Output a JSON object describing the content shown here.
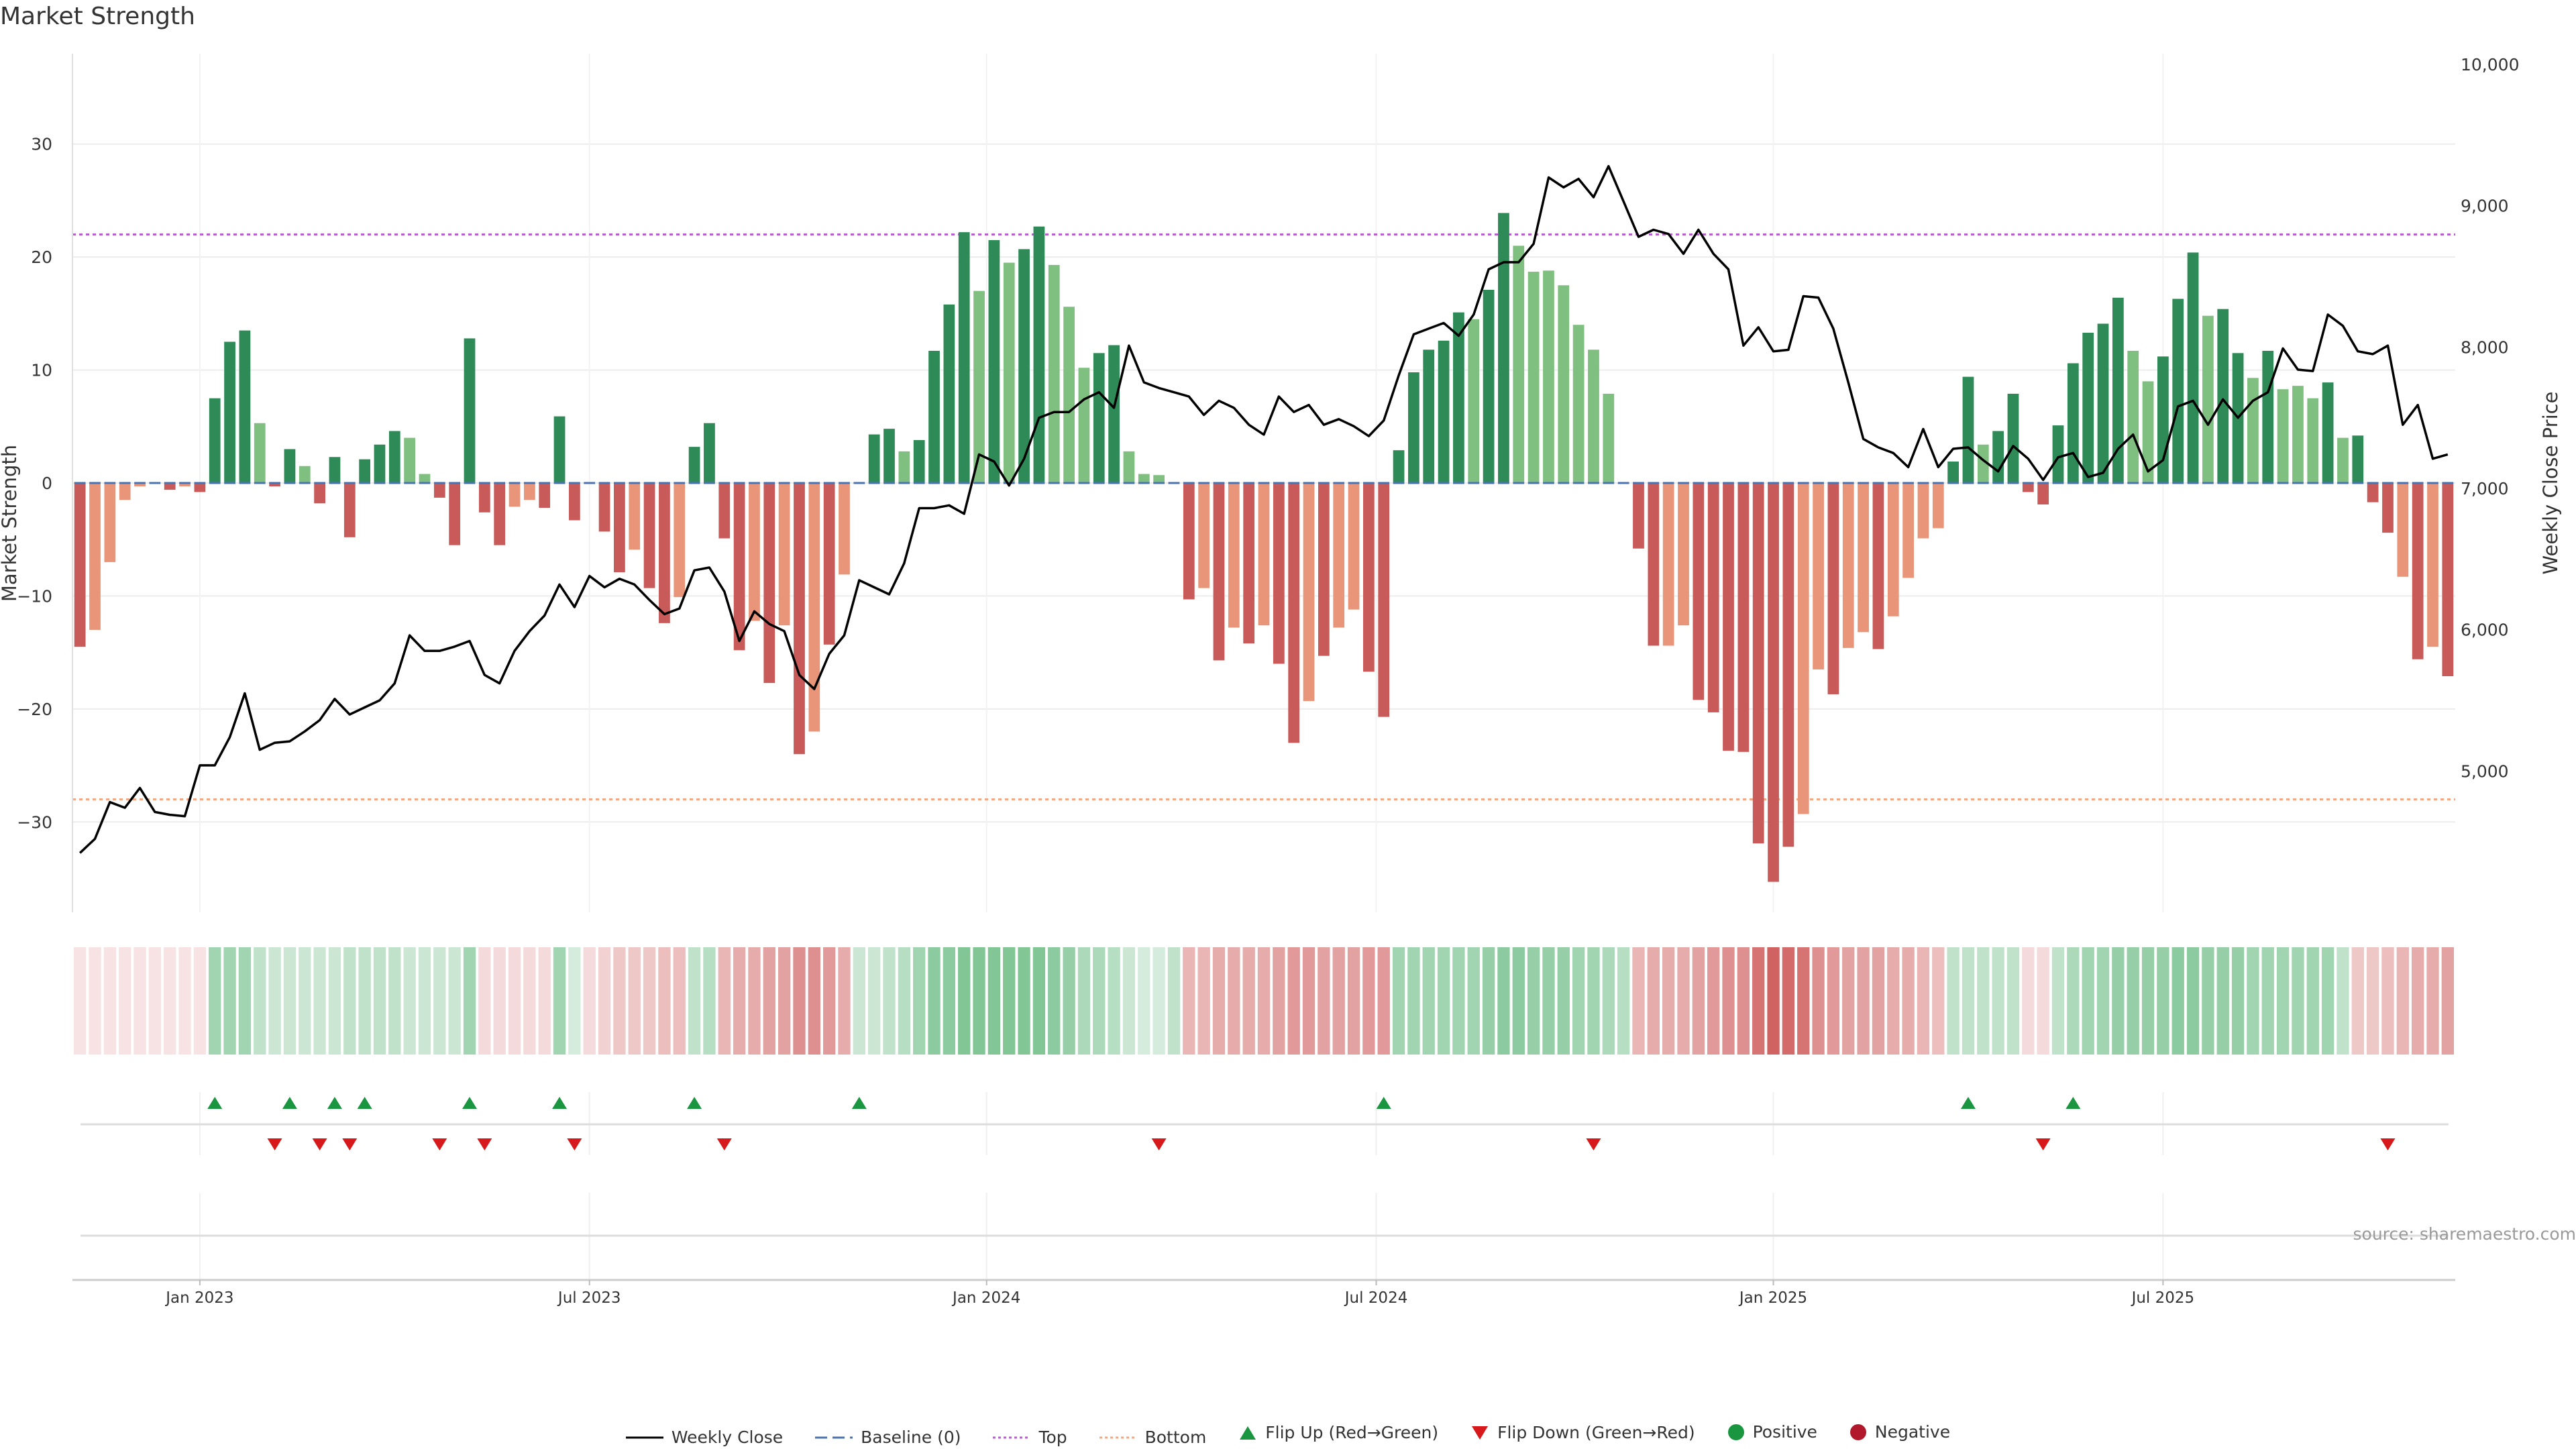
{
  "title": "Market Strength",
  "source": "source: sharemaestro.com",
  "colors": {
    "dark_green": "#2e8b57",
    "light_green": "#7fbf7f",
    "dark_red": "#c85a5a",
    "light_red": "#e8957a",
    "top_line": "#b660cd",
    "bottom_line": "#f4a582",
    "baseline": "#4c72b0",
    "flip_up": "#1a9641",
    "flip_down": "#d7191c",
    "price_line": "#000000"
  },
  "legend": {
    "weekly_close": "Weekly Close",
    "baseline": "Baseline (0)",
    "top": "Top",
    "bottom": "Bottom",
    "flip_up": "Flip Up (Red→Green)",
    "flip_down": "Flip Down (Green→Red)",
    "positive": "Positive",
    "negative": "Negative"
  },
  "chart_data": {
    "type": "bar",
    "title": "Market Strength",
    "ylabel": "Market Strength",
    "y2label": "Weekly Close Price",
    "ylim": [
      -38,
      38
    ],
    "yticks": [
      -30,
      -20,
      -10,
      0,
      10,
      20,
      30
    ],
    "y2lim": [
      4000,
      10000
    ],
    "y2ticks": [
      "5,000",
      "6,000",
      "7,000",
      "8,000",
      "9,000",
      "10,000"
    ],
    "y2tick_values": [
      5000,
      6000,
      7000,
      8000,
      9000,
      10000
    ],
    "top_threshold": 22,
    "bottom_threshold": -28,
    "x_tick_labels": [
      "Jan 2023",
      "Jul 2023",
      "Jan 2024",
      "Jul 2024",
      "Jan 2025",
      "Jul 2025"
    ],
    "x_tick_weeks": [
      8,
      34,
      60.5,
      86.5,
      113,
      139
    ],
    "strength": [
      -14.5,
      -13,
      -7,
      -1.5,
      -0.3,
      0,
      -0.6,
      -0.3,
      -0.8,
      7.5,
      12.5,
      13.5,
      5.3,
      -0.3,
      3,
      1.5,
      -1.8,
      2.3,
      -4.8,
      2.1,
      3.4,
      4.6,
      4,
      0.8,
      -1.3,
      -5.5,
      12.8,
      -2.6,
      -5.5,
      -2.1,
      -1.5,
      -2.2,
      5.9,
      -3.3,
      0,
      -4.3,
      -7.9,
      -5.9,
      -9.3,
      -12.4,
      -10.1,
      3.2,
      5.3,
      -4.9,
      -14.8,
      -12.2,
      -17.7,
      -12.6,
      -24,
      -22,
      -14.3,
      -8.1,
      0,
      4.3,
      4.8,
      2.8,
      3.8,
      11.7,
      15.8,
      22.2,
      17,
      21.5,
      19.5,
      20.7,
      22.7,
      19.3,
      15.6,
      10.2,
      11.5,
      12.2,
      2.8,
      0.8,
      0.7,
      0,
      -10.3,
      -9.3,
      -15.7,
      -12.8,
      -14.2,
      -12.6,
      -16,
      -23,
      -19.3,
      -15.3,
      -12.8,
      -11.2,
      -16.7,
      -20.7,
      2.9,
      9.8,
      11.8,
      12.6,
      15.1,
      14.5,
      17.1,
      23.9,
      21,
      18.7,
      18.8,
      17.5,
      14,
      11.8,
      7.9,
      0,
      -5.8,
      -14.4,
      -14.4,
      -12.6,
      -19.2,
      -20.3,
      -23.7,
      -23.8,
      -31.9,
      -35.3,
      -32.2,
      -29.3,
      -16.5,
      -18.7,
      -14.6,
      -13.2,
      -14.7,
      -11.8,
      -8.4,
      -4.9,
      -4,
      1.9,
      9.4,
      3.4,
      4.6,
      7.9,
      -0.8,
      -1.9,
      5.1,
      10.6,
      13.3,
      14.1,
      16.4,
      11.7,
      9,
      11.2,
      16.3,
      20.4,
      14.8,
      15.4,
      11.5,
      9.3,
      11.7,
      8.3,
      8.6,
      7.5,
      8.9,
      4,
      4.2,
      -1.7,
      -4.4,
      -8.3,
      -15.6,
      -14.5,
      -17.1
    ],
    "strength_shade": [
      "d",
      "l",
      "l",
      "l",
      "l",
      "l",
      "d",
      "l",
      "d",
      "d",
      "d",
      "d",
      "l",
      "d",
      "d",
      "l",
      "d",
      "d",
      "d",
      "d",
      "d",
      "d",
      "l",
      "l",
      "d",
      "d",
      "d",
      "d",
      "d",
      "l",
      "l",
      "d",
      "d",
      "d",
      "d",
      "d",
      "d",
      "l",
      "d",
      "d",
      "l",
      "d",
      "d",
      "d",
      "d",
      "l",
      "d",
      "l",
      "d",
      "l",
      "d",
      "l",
      "d",
      "d",
      "d",
      "l",
      "d",
      "d",
      "d",
      "d",
      "l",
      "d",
      "l",
      "d",
      "d",
      "l",
      "l",
      "l",
      "d",
      "d",
      "l",
      "l",
      "l",
      "d",
      "d",
      "l",
      "d",
      "l",
      "d",
      "l",
      "d",
      "d",
      "l",
      "d",
      "l",
      "l",
      "d",
      "d",
      "d",
      "d",
      "d",
      "d",
      "d",
      "l",
      "d",
      "d",
      "l",
      "l",
      "l",
      "l",
      "l",
      "l",
      "l",
      "d",
      "d",
      "d",
      "l",
      "l",
      "d",
      "d",
      "d",
      "d",
      "d",
      "d",
      "d",
      "l",
      "l",
      "d",
      "l",
      "l",
      "d",
      "l",
      "l",
      "l",
      "l",
      "d",
      "d",
      "l",
      "d",
      "d",
      "d",
      "d",
      "d",
      "d",
      "d",
      "d",
      "d",
      "l",
      "l",
      "d",
      "d",
      "d",
      "l",
      "d",
      "d",
      "l",
      "d",
      "l",
      "l",
      "l",
      "d",
      "l",
      "d",
      "d",
      "d",
      "l",
      "d",
      "l",
      "d"
    ],
    "price": [
      4420,
      4520,
      4780,
      4740,
      4880,
      4710,
      4690,
      4680,
      5040,
      5040,
      5240,
      5550,
      5150,
      5200,
      5210,
      5280,
      5360,
      5510,
      5400,
      5450,
      5500,
      5620,
      5960,
      5850,
      5850,
      5880,
      5920,
      5680,
      5620,
      5850,
      5990,
      6100,
      6320,
      6160,
      6380,
      6300,
      6360,
      6320,
      6210,
      6110,
      6150,
      6420,
      6440,
      6270,
      5920,
      6130,
      6040,
      5990,
      5680,
      5580,
      5830,
      5960,
      6350,
      6300,
      6250,
      6470,
      6860,
      6860,
      6880,
      6820,
      7240,
      7190,
      7020,
      7210,
      7500,
      7540,
      7540,
      7630,
      7680,
      7570,
      8010,
      7750,
      7710,
      7680,
      7650,
      7520,
      7620,
      7570,
      7450,
      7380,
      7650,
      7540,
      7590,
      7450,
      7490,
      7440,
      7370,
      7480,
      7800,
      8090,
      8130,
      8170,
      8080,
      8230,
      8550,
      8600,
      8600,
      8730,
      9200,
      9130,
      9190,
      9060,
      9280,
      9030,
      8780,
      8830,
      8800,
      8660,
      8830,
      8660,
      8550,
      8010,
      8140,
      7970,
      7980,
      8360,
      8350,
      8130,
      7750,
      7350,
      7290,
      7250,
      7150,
      7420,
      7150,
      7280,
      7290,
      7200,
      7120,
      7300,
      7210,
      7060,
      7220,
      7250,
      7080,
      7110,
      7280,
      7380,
      7120,
      7200,
      7580,
      7620,
      7450,
      7630,
      7500,
      7620,
      7680,
      7990,
      7840,
      7830,
      8230,
      8150,
      7970,
      7950,
      8010,
      7450,
      7590,
      7210,
      7240
    ],
    "baseline": 0,
    "flip_up_weeks": [
      9,
      14,
      17,
      19,
      26,
      32,
      41,
      52,
      87,
      126,
      133
    ],
    "flip_down_weeks": [
      13,
      16,
      18,
      24,
      27,
      33,
      43,
      72,
      101,
      131,
      154
    ],
    "sentiment_shade": [
      "r",
      "r",
      "r",
      "r",
      "r",
      "r",
      "r",
      "r",
      "r",
      "g",
      "g",
      "g",
      "g",
      "g",
      "g",
      "g",
      "g",
      "g",
      "g",
      "g",
      "g",
      "g",
      "g",
      "g",
      "g",
      "g",
      "g",
      "r",
      "r",
      "r",
      "r",
      "r",
      "g",
      "g",
      "r",
      "r",
      "r",
      "r",
      "r",
      "r",
      "r",
      "g",
      "g",
      "r",
      "r",
      "r",
      "r",
      "r",
      "r",
      "r",
      "r",
      "r",
      "g",
      "g",
      "g",
      "g",
      "g",
      "g",
      "g",
      "g",
      "g",
      "g",
      "g",
      "g",
      "g",
      "g",
      "g",
      "g",
      "g",
      "g",
      "g",
      "g",
      "g",
      "g",
      "r",
      "r",
      "r",
      "r",
      "r",
      "r",
      "r",
      "r",
      "r",
      "r",
      "r",
      "r",
      "r",
      "r",
      "g",
      "g",
      "g",
      "g",
      "g",
      "g",
      "g",
      "g",
      "g",
      "g",
      "g",
      "g",
      "g",
      "g",
      "g",
      "g",
      "r",
      "r",
      "r",
      "r",
      "r",
      "r",
      "r",
      "r",
      "r",
      "r",
      "r",
      "r",
      "r",
      "r",
      "r",
      "r",
      "r",
      "r",
      "r",
      "r",
      "r",
      "g",
      "g",
      "g",
      "g",
      "g",
      "r",
      "r",
      "g",
      "g",
      "g",
      "g",
      "g",
      "g",
      "g",
      "g",
      "g",
      "g",
      "g",
      "g",
      "g",
      "g",
      "g",
      "g",
      "g",
      "g",
      "g",
      "g",
      "r",
      "r",
      "r",
      "r",
      "r",
      "r",
      "r"
    ],
    "sentiment_intensity": [
      0.15,
      0.15,
      0.15,
      0.15,
      0.15,
      0.15,
      0.15,
      0.15,
      0.15,
      0.45,
      0.45,
      0.45,
      0.3,
      0.25,
      0.25,
      0.25,
      0.25,
      0.25,
      0.3,
      0.3,
      0.3,
      0.3,
      0.25,
      0.25,
      0.25,
      0.25,
      0.45,
      0.2,
      0.2,
      0.2,
      0.2,
      0.2,
      0.45,
      0.2,
      0.2,
      0.25,
      0.3,
      0.3,
      0.3,
      0.35,
      0.35,
      0.3,
      0.35,
      0.4,
      0.45,
      0.45,
      0.5,
      0.5,
      0.6,
      0.6,
      0.55,
      0.45,
      0.25,
      0.25,
      0.3,
      0.35,
      0.45,
      0.55,
      0.55,
      0.6,
      0.6,
      0.6,
      0.6,
      0.6,
      0.6,
      0.55,
      0.5,
      0.4,
      0.4,
      0.35,
      0.25,
      0.2,
      0.2,
      0.3,
      0.4,
      0.4,
      0.45,
      0.45,
      0.45,
      0.45,
      0.5,
      0.55,
      0.55,
      0.5,
      0.5,
      0.5,
      0.55,
      0.55,
      0.45,
      0.45,
      0.45,
      0.45,
      0.45,
      0.45,
      0.5,
      0.55,
      0.55,
      0.5,
      0.5,
      0.5,
      0.45,
      0.45,
      0.4,
      0.35,
      0.4,
      0.45,
      0.45,
      0.45,
      0.5,
      0.55,
      0.6,
      0.6,
      0.75,
      0.85,
      0.8,
      0.75,
      0.6,
      0.55,
      0.5,
      0.5,
      0.5,
      0.45,
      0.45,
      0.4,
      0.35,
      0.3,
      0.3,
      0.3,
      0.3,
      0.3,
      0.2,
      0.2,
      0.3,
      0.4,
      0.45,
      0.45,
      0.5,
      0.5,
      0.5,
      0.5,
      0.55,
      0.55,
      0.5,
      0.5,
      0.5,
      0.45,
      0.45,
      0.45,
      0.45,
      0.45,
      0.45,
      0.3,
      0.3,
      0.3,
      0.35,
      0.4,
      0.45,
      0.45,
      0.5
    ]
  }
}
